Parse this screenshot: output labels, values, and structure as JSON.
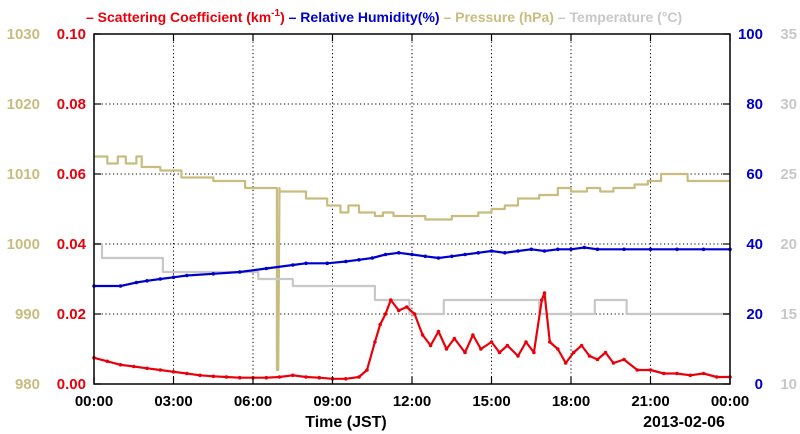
{
  "chart_data": {
    "type": "line",
    "legend": [
      {
        "text": "Scattering Coefficient (km",
        "sup": "-1",
        "suffix": ")",
        "color": "#e8000b"
      },
      {
        "text": "Relative Humidity(%)",
        "color": "#0000cc"
      },
      {
        "text": "Pressure (hPa)",
        "color": "#c8bc7e"
      },
      {
        "text": "Temperature (°C)",
        "color": "#c8c8c8"
      }
    ],
    "xlabel": "Time (JST)",
    "date_label": "2013-02-06",
    "x_ticks": [
      "00:00",
      "03:00",
      "06:00",
      "09:00",
      "12:00",
      "15:00",
      "18:00",
      "21:00",
      "00:00"
    ],
    "xlim_hours": [
      0,
      24
    ],
    "axes": {
      "pressure": {
        "ticks": [
          "980",
          "990",
          "1000",
          "1010",
          "1020",
          "1030"
        ],
        "ylim": [
          980,
          1030
        ],
        "color": "#c8bc7e"
      },
      "scattering": {
        "ticks": [
          "0.00",
          "0.02",
          "0.04",
          "0.06",
          "0.08",
          "0.10"
        ],
        "ylim": [
          0,
          0.1
        ],
        "color": "#e8000b"
      },
      "humidity": {
        "ticks": [
          "0",
          "20",
          "40",
          "60",
          "80",
          "100"
        ],
        "ylim": [
          0,
          100
        ],
        "color": "#0000cc"
      },
      "temperature": {
        "ticks": [
          "10",
          "15",
          "20",
          "25",
          "30",
          "35"
        ],
        "ylim": [
          10,
          35
        ],
        "color": "#c8c8c8"
      }
    },
    "grid": true,
    "series": [
      {
        "name": "Pressure (hPa)",
        "axis": "pressure",
        "color": "#c8bc7e",
        "x": [
          0,
          0.5,
          0.5,
          0.9,
          0.9,
          1.2,
          1.2,
          1.6,
          1.6,
          1.8,
          1.8,
          2.5,
          2.5,
          3.3,
          3.3,
          4.5,
          4.5,
          5.7,
          5.7,
          6.9,
          6.9,
          6.95,
          7.0,
          7.0,
          8.0,
          8.0,
          8.8,
          8.8,
          9.3,
          9.3,
          9.6,
          9.6,
          10.0,
          10.0,
          10.6,
          10.6,
          10.9,
          10.9,
          11.3,
          11.3,
          12.5,
          12.5,
          13.5,
          13.5,
          14.5,
          14.5,
          15.0,
          15.0,
          15.5,
          15.5,
          16.0,
          16.0,
          16.8,
          16.8,
          17.5,
          17.5,
          18.0,
          18.0,
          18.6,
          18.6,
          19.1,
          19.1,
          19.6,
          19.6,
          20.4,
          20.4,
          20.9,
          20.9,
          21.4,
          21.4,
          22.4,
          22.4,
          24.0
        ],
        "values": [
          1012.5,
          1012.5,
          1011.5,
          1011.5,
          1012.5,
          1012.5,
          1011.5,
          1011.5,
          1012.5,
          1012.5,
          1011.0,
          1011.0,
          1010.5,
          1010.5,
          1009.5,
          1009.5,
          1009.0,
          1009.0,
          1008.0,
          1008.0,
          982.0,
          982.0,
          1008.0,
          1007.5,
          1007.5,
          1006.5,
          1006.5,
          1005.5,
          1005.5,
          1004.5,
          1004.5,
          1005.5,
          1005.5,
          1004.5,
          1004.5,
          1004.0,
          1004.0,
          1004.5,
          1004.5,
          1004.0,
          1004.0,
          1003.5,
          1003.5,
          1004.0,
          1004.0,
          1004.5,
          1004.5,
          1005.0,
          1005.0,
          1005.5,
          1005.5,
          1006.5,
          1006.5,
          1007.0,
          1007.0,
          1008.0,
          1008.0,
          1007.5,
          1007.5,
          1008.0,
          1008.0,
          1007.5,
          1007.5,
          1008.0,
          1008.0,
          1008.5,
          1008.5,
          1009.0,
          1009.0,
          1010.0,
          1010.0,
          1009.0,
          1009.0
        ]
      },
      {
        "name": "Temperature (°C)",
        "axis": "temperature",
        "color": "#c8c8c8",
        "x": [
          0,
          0.3,
          0.3,
          2.6,
          2.6,
          4.4,
          4.4,
          6.2,
          6.2,
          7.5,
          7.5,
          10.6,
          10.6,
          11.9,
          11.9,
          13.2,
          13.2,
          16.8,
          16.8,
          18.3,
          18.3,
          18.9,
          18.9,
          20.1,
          20.1,
          21.3,
          21.3,
          21.6,
          21.6,
          24.0
        ],
        "values": [
          20.0,
          20.0,
          19.0,
          19.0,
          18.0,
          18.0,
          18.0,
          18.0,
          17.5,
          17.5,
          17.0,
          17.0,
          16.0,
          16.0,
          15.0,
          15.0,
          16.0,
          16.0,
          15.0,
          15.0,
          15.0,
          15.0,
          16.0,
          16.0,
          15.0,
          15.0,
          15.0,
          15.0,
          15.0,
          15.0
        ]
      },
      {
        "name": "Relative Humidity(%)",
        "axis": "humidity",
        "color": "#0000cc",
        "x": [
          0,
          1.0,
          1.6,
          2.0,
          2.5,
          3.0,
          3.5,
          4.5,
          5.5,
          6.5,
          7.5,
          8.0,
          8.8,
          9.5,
          10.0,
          10.5,
          11.0,
          11.5,
          12.0,
          12.5,
          13.0,
          13.5,
          14.0,
          14.5,
          15.0,
          15.5,
          16.0,
          16.5,
          17.0,
          17.5,
          18.0,
          18.5,
          19.0,
          20.0,
          21.0,
          22.0,
          23.0,
          24.0
        ],
        "values": [
          28.0,
          28.0,
          29.0,
          29.5,
          30.0,
          30.5,
          31.0,
          31.5,
          32.0,
          33.0,
          34.0,
          34.5,
          34.5,
          35.0,
          35.5,
          36.0,
          37.0,
          37.5,
          37.0,
          36.5,
          36.0,
          36.5,
          37.0,
          37.5,
          38.0,
          37.5,
          38.0,
          38.5,
          38.0,
          38.5,
          38.5,
          39.0,
          38.5,
          38.5,
          38.5,
          38.5,
          38.5,
          38.5
        ]
      },
      {
        "name": "Scattering Coefficient (km-1)",
        "axis": "scattering",
        "color": "#e8000b",
        "x": [
          0,
          0.5,
          1.0,
          1.5,
          2.0,
          2.5,
          3.0,
          3.5,
          4.0,
          4.5,
          5.0,
          5.5,
          6.0,
          6.5,
          7.0,
          7.5,
          8.0,
          8.5,
          9.0,
          9.5,
          10.0,
          10.3,
          10.6,
          10.8,
          11.0,
          11.2,
          11.5,
          11.8,
          12.1,
          12.4,
          12.7,
          13.0,
          13.3,
          13.6,
          14.0,
          14.3,
          14.6,
          15.0,
          15.3,
          15.6,
          16.0,
          16.3,
          16.6,
          16.9,
          17.0,
          17.2,
          17.5,
          17.8,
          18.1,
          18.4,
          18.7,
          19.0,
          19.3,
          19.6,
          20.0,
          20.5,
          21.0,
          21.5,
          22.0,
          22.5,
          23.0,
          23.5,
          24.0
        ],
        "values": [
          0.0075,
          0.0065,
          0.0055,
          0.005,
          0.0045,
          0.004,
          0.0035,
          0.003,
          0.0025,
          0.0022,
          0.002,
          0.0018,
          0.0018,
          0.0018,
          0.002,
          0.0025,
          0.002,
          0.0018,
          0.0015,
          0.0015,
          0.002,
          0.004,
          0.012,
          0.017,
          0.02,
          0.024,
          0.021,
          0.022,
          0.02,
          0.014,
          0.011,
          0.015,
          0.01,
          0.013,
          0.009,
          0.014,
          0.01,
          0.012,
          0.009,
          0.011,
          0.008,
          0.012,
          0.009,
          0.024,
          0.026,
          0.012,
          0.01,
          0.006,
          0.009,
          0.011,
          0.008,
          0.007,
          0.009,
          0.006,
          0.007,
          0.004,
          0.004,
          0.003,
          0.003,
          0.0025,
          0.003,
          0.002,
          0.002
        ]
      }
    ]
  }
}
